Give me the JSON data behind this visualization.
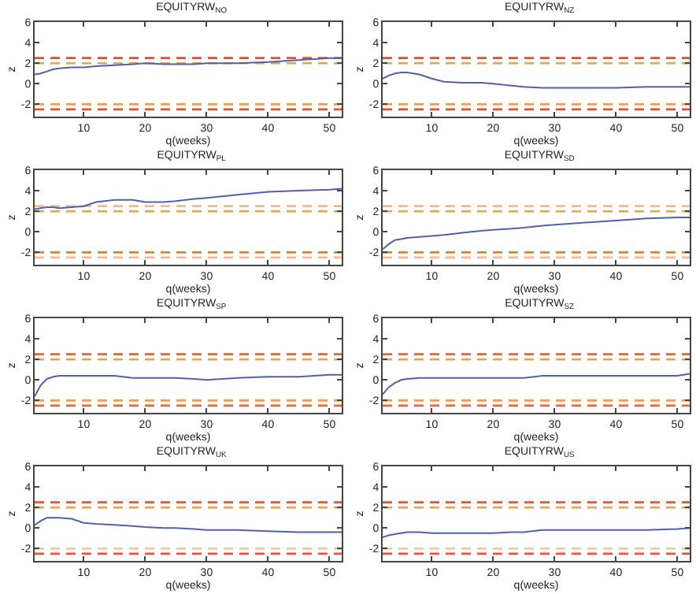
{
  "chart_data": [
    {
      "type": "line",
      "title": "EQUITYRW$_{NO}$",
      "xlabel": "q(weeks)",
      "ylabel": "z",
      "x": [
        2,
        3,
        4,
        5,
        6,
        8,
        10,
        12,
        15,
        18,
        20,
        23,
        25,
        28,
        30,
        35,
        40,
        45,
        50,
        52
      ],
      "series": [
        {
          "color": "#5060b0",
          "values": [
            0.9,
            1.0,
            1.2,
            1.4,
            1.5,
            1.6,
            1.6,
            1.7,
            1.8,
            1.9,
            2.0,
            1.9,
            1.9,
            1.9,
            2.0,
            2.0,
            2.1,
            2.3,
            2.5,
            2.5
          ]
        }
      ],
      "xlim": [
        2,
        52
      ],
      "ylim": [
        -3.2,
        6
      ],
      "xticks": [
        10,
        20,
        30,
        40,
        50
      ],
      "yticks": [
        -2,
        0,
        2,
        4,
        6
      ],
      "grid": false,
      "ref_lines": [
        {
          "axis": "y",
          "value": 2.5,
          "color": "#e05030",
          "line_style": "dashed"
        },
        {
          "axis": "y",
          "value": 2,
          "color": "#f0a040",
          "line_style": "dashed"
        },
        {
          "axis": "y",
          "value": -2,
          "color": "#f0a040",
          "line_style": "dashed"
        },
        {
          "axis": "y",
          "value": -2.5,
          "color": "#e05030",
          "line_style": "dashed"
        }
      ]
    },
    {
      "type": "line",
      "title": "EQUITYRW$_{NZ}$",
      "xlabel": "q(weeks)",
      "ylabel": "z",
      "x": [
        2,
        3,
        4,
        5,
        6,
        8,
        10,
        12,
        15,
        18,
        20,
        23,
        25,
        28,
        30,
        35,
        40,
        45,
        50,
        52
      ],
      "series": [
        {
          "color": "#5060b0",
          "values": [
            0.5,
            0.8,
            1.0,
            1.1,
            1.1,
            0.9,
            0.5,
            0.2,
            0.1,
            0.1,
            0.0,
            -0.2,
            -0.3,
            -0.4,
            -0.4,
            -0.4,
            -0.4,
            -0.3,
            -0.3,
            -0.3
          ]
        }
      ],
      "xlim": [
        2,
        52
      ],
      "ylim": [
        -3.2,
        6
      ],
      "xticks": [
        10,
        20,
        30,
        40,
        50
      ],
      "yticks": [
        -2,
        0,
        2,
        4,
        6
      ],
      "grid": false,
      "ref_lines": [
        {
          "axis": "y",
          "value": 2.5,
          "color": "#e05030",
          "line_style": "dashed"
        },
        {
          "axis": "y",
          "value": 2,
          "color": "#f0a040",
          "line_style": "dashed"
        },
        {
          "axis": "y",
          "value": -2,
          "color": "#f0a040",
          "line_style": "dashed"
        },
        {
          "axis": "y",
          "value": -2.5,
          "color": "#e05030",
          "line_style": "dashed"
        }
      ]
    },
    {
      "type": "line",
      "title": "EQUITYRW$_{PL}$",
      "xlabel": "q(weeks)",
      "ylabel": "z",
      "x": [
        2,
        3,
        4,
        5,
        6,
        8,
        10,
        12,
        15,
        18,
        20,
        23,
        25,
        28,
        30,
        35,
        40,
        45,
        50,
        52
      ],
      "series": [
        {
          "color": "#5060b0",
          "values": [
            2.2,
            2.3,
            2.4,
            2.4,
            2.3,
            2.4,
            2.5,
            2.9,
            3.1,
            3.1,
            2.9,
            2.9,
            3.0,
            3.2,
            3.3,
            3.6,
            3.9,
            4.0,
            4.1,
            4.2
          ]
        }
      ],
      "xlim": [
        2,
        52
      ],
      "ylim": [
        -3.2,
        6
      ],
      "xticks": [
        10,
        20,
        30,
        40,
        50
      ],
      "yticks": [
        -2,
        0,
        2,
        4,
        6
      ],
      "grid": false,
      "ref_lines": [
        {
          "axis": "y",
          "value": 2.5,
          "color": "#f5b890",
          "line_style": "dashed"
        },
        {
          "axis": "y",
          "value": 2,
          "color": "#f0a040",
          "line_style": "dashed"
        },
        {
          "axis": "y",
          "value": -2,
          "color": "#e08030",
          "line_style": "dashed"
        },
        {
          "axis": "y",
          "value": -2.5,
          "color": "#f5b890",
          "line_style": "dashed"
        }
      ]
    },
    {
      "type": "line",
      "title": "EQUITYRW$_{SD}$",
      "xlabel": "q(weeks)",
      "ylabel": "z",
      "x": [
        2,
        3,
        4,
        5,
        6,
        8,
        10,
        12,
        15,
        18,
        20,
        23,
        25,
        28,
        30,
        35,
        40,
        45,
        50,
        52
      ],
      "series": [
        {
          "color": "#5060b0",
          "values": [
            -1.7,
            -1.2,
            -0.8,
            -0.7,
            -0.6,
            -0.5,
            -0.4,
            -0.3,
            -0.1,
            0.1,
            0.2,
            0.3,
            0.4,
            0.6,
            0.7,
            0.9,
            1.1,
            1.3,
            1.4,
            1.4
          ]
        }
      ],
      "xlim": [
        2,
        52
      ],
      "ylim": [
        -3.2,
        6
      ],
      "xticks": [
        10,
        20,
        30,
        40,
        50
      ],
      "yticks": [
        -2,
        0,
        2,
        4,
        6
      ],
      "grid": false,
      "ref_lines": [
        {
          "axis": "y",
          "value": 2.5,
          "color": "#f5b890",
          "line_style": "dashed"
        },
        {
          "axis": "y",
          "value": 2,
          "color": "#f0a040",
          "line_style": "dashed"
        },
        {
          "axis": "y",
          "value": -2,
          "color": "#e08030",
          "line_style": "dashed"
        },
        {
          "axis": "y",
          "value": -2.5,
          "color": "#f5b890",
          "line_style": "dashed"
        }
      ]
    },
    {
      "type": "line",
      "title": "EQUITYRW$_{SP}$",
      "xlabel": "q(weeks)",
      "ylabel": "z",
      "x": [
        2,
        3,
        4,
        5,
        6,
        8,
        10,
        12,
        15,
        18,
        20,
        23,
        25,
        28,
        30,
        35,
        40,
        45,
        50,
        52
      ],
      "series": [
        {
          "color": "#5060b0",
          "values": [
            -1.6,
            -0.5,
            0.1,
            0.3,
            0.4,
            0.4,
            0.4,
            0.4,
            0.4,
            0.2,
            0.2,
            0.2,
            0.2,
            0.1,
            0.0,
            0.2,
            0.3,
            0.3,
            0.5,
            0.5
          ]
        }
      ],
      "xlim": [
        2,
        52
      ],
      "ylim": [
        -3.2,
        6
      ],
      "xticks": [
        10,
        20,
        30,
        40,
        50
      ],
      "yticks": [
        -2,
        0,
        2,
        4,
        6
      ],
      "grid": false,
      "ref_lines": [
        {
          "axis": "y",
          "value": 2.5,
          "color": "#f06030",
          "line_style": "dashed"
        },
        {
          "axis": "y",
          "value": 2,
          "color": "#f0a040",
          "line_style": "dashed"
        },
        {
          "axis": "y",
          "value": -2,
          "color": "#f0a040",
          "line_style": "dashed"
        },
        {
          "axis": "y",
          "value": -2.5,
          "color": "#f06030",
          "line_style": "dashed"
        }
      ]
    },
    {
      "type": "line",
      "title": "EQUITYRW$_{SZ}$",
      "xlabel": "q(weeks)",
      "ylabel": "z",
      "x": [
        2,
        3,
        4,
        5,
        6,
        8,
        10,
        12,
        15,
        18,
        20,
        23,
        25,
        28,
        30,
        35,
        40,
        45,
        50,
        52
      ],
      "series": [
        {
          "color": "#5060b0",
          "values": [
            -1.4,
            -0.7,
            -0.3,
            0.0,
            0.1,
            0.2,
            0.2,
            0.2,
            0.2,
            0.2,
            0.2,
            0.2,
            0.2,
            0.4,
            0.4,
            0.4,
            0.4,
            0.4,
            0.4,
            0.6
          ]
        }
      ],
      "xlim": [
        2,
        52
      ],
      "ylim": [
        -3.2,
        6
      ],
      "xticks": [
        10,
        20,
        30,
        40,
        50
      ],
      "yticks": [
        -2,
        0,
        2,
        4,
        6
      ],
      "grid": false,
      "ref_lines": [
        {
          "axis": "y",
          "value": 2.5,
          "color": "#f06030",
          "line_style": "dashed"
        },
        {
          "axis": "y",
          "value": 2,
          "color": "#f0a040",
          "line_style": "dashed"
        },
        {
          "axis": "y",
          "value": -2,
          "color": "#f0a040",
          "line_style": "dashed"
        },
        {
          "axis": "y",
          "value": -2.5,
          "color": "#f06030",
          "line_style": "dashed"
        }
      ]
    },
    {
      "type": "line",
      "title": "EQUITYRW$_{UK}$",
      "xlabel": "q(weeks)",
      "ylabel": "z",
      "x": [
        2,
        3,
        4,
        5,
        6,
        8,
        10,
        12,
        15,
        18,
        20,
        23,
        25,
        28,
        30,
        35,
        40,
        45,
        50,
        52
      ],
      "series": [
        {
          "color": "#5060b0",
          "values": [
            0.3,
            0.7,
            1.0,
            1.0,
            1.0,
            0.9,
            0.5,
            0.4,
            0.3,
            0.2,
            0.1,
            0.0,
            0.0,
            -0.1,
            -0.2,
            -0.2,
            -0.3,
            -0.4,
            -0.4,
            -0.4
          ]
        }
      ],
      "xlim": [
        2,
        52
      ],
      "ylim": [
        -3.2,
        6
      ],
      "xticks": [
        10,
        20,
        30,
        40,
        50
      ],
      "yticks": [
        -2,
        0,
        2,
        4,
        6
      ],
      "grid": false,
      "ref_lines": [
        {
          "axis": "y",
          "value": 2.5,
          "color": "#f05030",
          "line_style": "dashed"
        },
        {
          "axis": "y",
          "value": 2,
          "color": "#f0a040",
          "line_style": "dashed"
        },
        {
          "axis": "y",
          "value": -2,
          "color": "#f5c8a0",
          "line_style": "dashed"
        },
        {
          "axis": "y",
          "value": -2.5,
          "color": "#f05030",
          "line_style": "dashed"
        }
      ]
    },
    {
      "type": "line",
      "title": "EQUITYRW$_{US}$",
      "xlabel": "q(weeks)",
      "ylabel": "z",
      "x": [
        2,
        3,
        4,
        5,
        6,
        8,
        10,
        12,
        15,
        18,
        20,
        23,
        25,
        28,
        30,
        35,
        40,
        45,
        50,
        52
      ],
      "series": [
        {
          "color": "#5060b0",
          "values": [
            -0.9,
            -0.7,
            -0.6,
            -0.5,
            -0.4,
            -0.4,
            -0.5,
            -0.5,
            -0.5,
            -0.5,
            -0.5,
            -0.4,
            -0.4,
            -0.2,
            -0.2,
            -0.2,
            -0.2,
            -0.2,
            -0.1,
            0.0
          ]
        }
      ],
      "xlim": [
        2,
        52
      ],
      "ylim": [
        -3.2,
        6
      ],
      "xticks": [
        10,
        20,
        30,
        40,
        50
      ],
      "yticks": [
        -2,
        0,
        2,
        4,
        6
      ],
      "grid": false,
      "ref_lines": [
        {
          "axis": "y",
          "value": 2.5,
          "color": "#f05030",
          "line_style": "dashed"
        },
        {
          "axis": "y",
          "value": 2,
          "color": "#f0a040",
          "line_style": "dashed"
        },
        {
          "axis": "y",
          "value": -2,
          "color": "#f5c8a0",
          "line_style": "dashed"
        },
        {
          "axis": "y",
          "value": -2.5,
          "color": "#f05030",
          "line_style": "dashed"
        }
      ]
    }
  ]
}
